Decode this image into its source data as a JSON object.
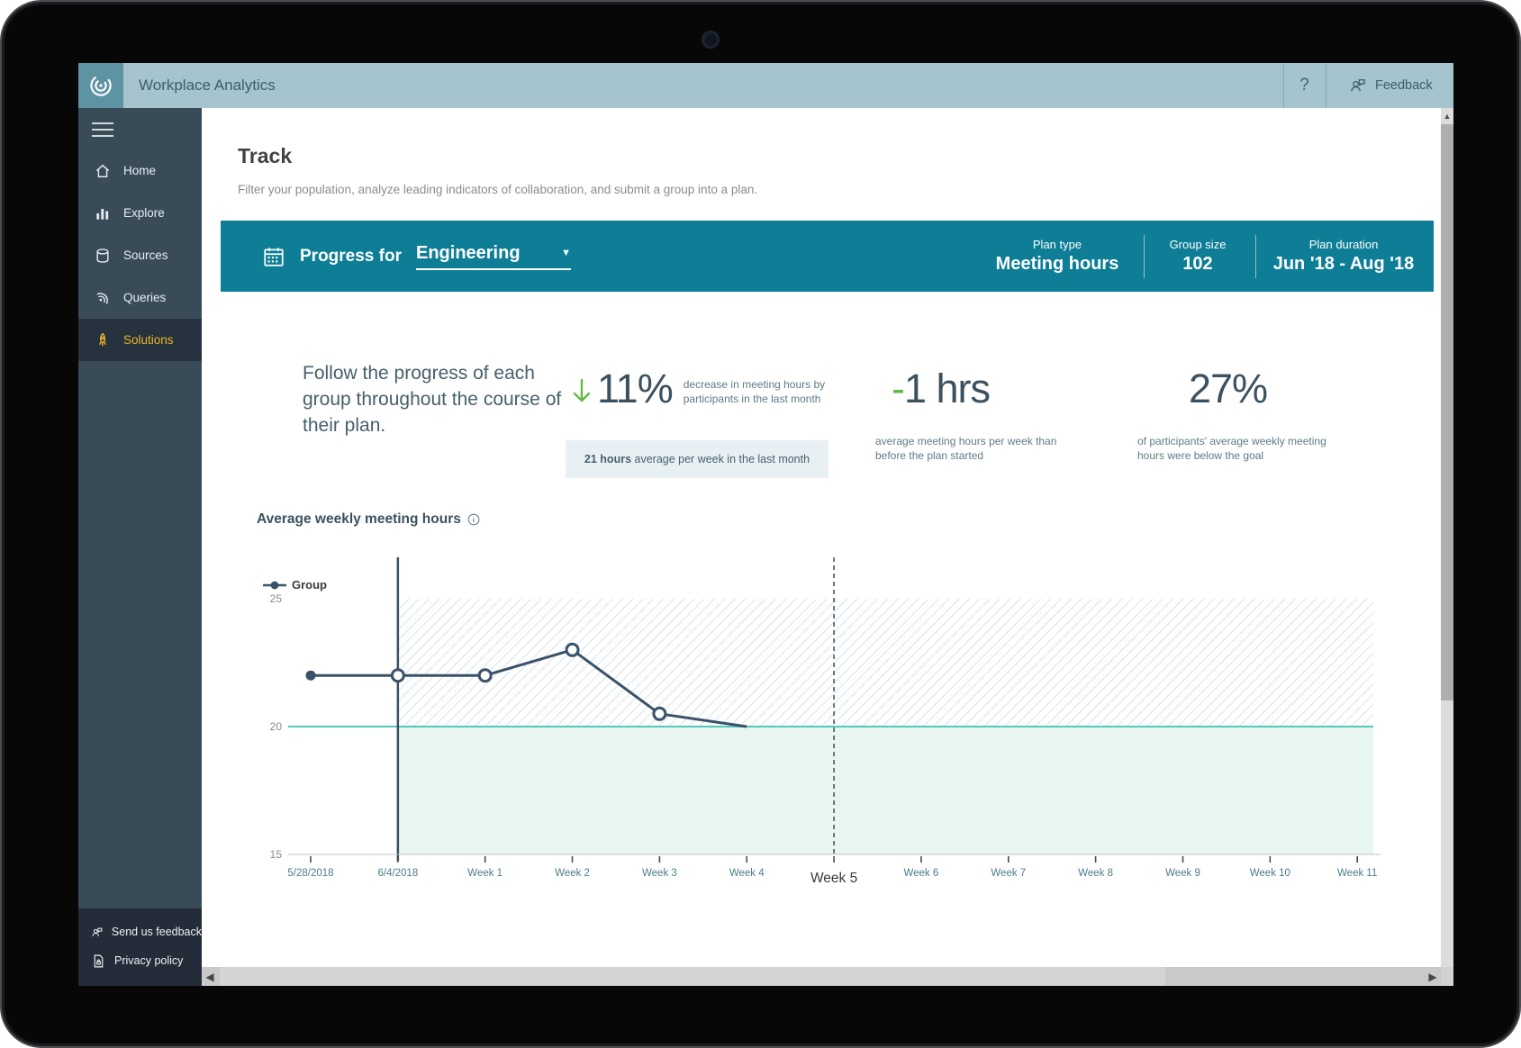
{
  "app": {
    "title": "Workplace Analytics",
    "help_label": "?",
    "feedback_label": "Feedback"
  },
  "sidebar": {
    "items": [
      {
        "label": "Home",
        "icon": "home-icon",
        "active": false
      },
      {
        "label": "Explore",
        "icon": "explore-icon",
        "active": false
      },
      {
        "label": "Sources",
        "icon": "sources-icon",
        "active": false
      },
      {
        "label": "Queries",
        "icon": "queries-icon",
        "active": false
      },
      {
        "label": "Solutions",
        "icon": "solutions-icon",
        "active": true
      }
    ],
    "footer": [
      {
        "label": "Send us feedback",
        "icon": "feedback-person-icon"
      },
      {
        "label": "Privacy policy",
        "icon": "privacy-document-icon"
      }
    ],
    "colors": {
      "background": "#3a4b58",
      "active_background": "#26323e",
      "active_accent": "#ecb32b"
    }
  },
  "page": {
    "title": "Track",
    "subtitle": "Filter your population, analyze leading indicators of collaboration, and submit a group into a plan."
  },
  "banner": {
    "label": "Progress for",
    "selected_group": "Engineering",
    "plan_type_label": "Plan type",
    "plan_type_value": "Meeting hours",
    "group_size_label": "Group size",
    "group_size_value": "102",
    "duration_label": "Plan duration",
    "duration_value": "Jun '18 - Aug '18",
    "accent": "#0d7e96"
  },
  "overview": {
    "description": "Follow the progress of each group throughout the course of their plan.",
    "stats": [
      {
        "direction": "down",
        "value": "11%",
        "caption": "decrease in meeting hours by participants in the last month",
        "note_strong": "21 hours",
        "note_rest": " average per week in the last month"
      },
      {
        "prefix": "-",
        "value": "1 hrs",
        "caption": "average meeting hours per week than before the plan started"
      },
      {
        "value": "27%",
        "caption": "of participants' average weekly meeting hours were below the goal"
      }
    ],
    "positive_color": "#62b946"
  },
  "chart_data": {
    "type": "line",
    "title": "Average weekly meeting hours",
    "x_labels": [
      "5/28/2018",
      "6/4/2018",
      "Week 1",
      "Week 2",
      "Week 3",
      "Week 4",
      "Week 5",
      "Week 6",
      "Week 7",
      "Week 8",
      "Week 9",
      "Week 10",
      "Week 11"
    ],
    "series": [
      {
        "name": "Group",
        "values": [
          22,
          22,
          22,
          23,
          20.5,
          20,
          null,
          null,
          null,
          null,
          null,
          null,
          null
        ],
        "markers": [
          "filled",
          "open",
          "open",
          "open",
          "open",
          "none",
          null,
          null,
          null,
          null,
          null,
          null,
          null
        ]
      }
    ],
    "goal": 20,
    "ylim": [
      15,
      25
    ],
    "yticks": [
      25,
      20,
      15
    ],
    "plan_start_index": 1,
    "current_week_index": 6,
    "legend_position": "top-left",
    "grid": false,
    "colors": {
      "line": "#3a5268",
      "goal_line": "#52c9b9",
      "below_goal_fill": "#e9f5f1",
      "hatch_stroke": "#ccdcea",
      "tick_label": "#4c7c8e",
      "current_week_label": "#3a3a3a",
      "y_label": "#8b8b8b"
    }
  }
}
